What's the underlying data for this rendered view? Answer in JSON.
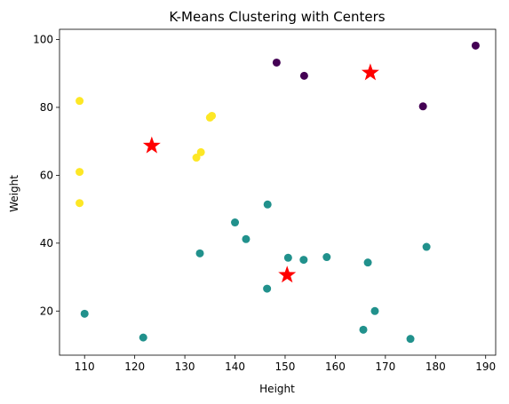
{
  "chart_data": {
    "type": "scatter",
    "title": "K-Means Clustering with Centers",
    "xlabel": "Height",
    "ylabel": "Weight",
    "xlim": [
      105,
      192
    ],
    "ylim": [
      7,
      103
    ],
    "xticks": [
      110,
      120,
      130,
      140,
      150,
      160,
      170,
      180,
      190
    ],
    "yticks": [
      20,
      40,
      60,
      80,
      100
    ],
    "grid": false,
    "legend": "none",
    "colors": {
      "cluster_0": "#440154",
      "cluster_1": "#21918c",
      "cluster_2": "#fde725",
      "center": "#ff0000",
      "axes": "#000000"
    },
    "series": [
      {
        "cluster": 0,
        "color": "#440154",
        "points": [
          [
            148.3,
            93.2
          ],
          [
            153.8,
            89.3
          ],
          [
            177.5,
            80.3
          ],
          [
            188,
            98.2
          ]
        ]
      },
      {
        "cluster": 1,
        "color": "#21918c",
        "points": [
          [
            110,
            19.2
          ],
          [
            121.7,
            12.2
          ],
          [
            133,
            37
          ],
          [
            140,
            46.1
          ],
          [
            142.2,
            41.2
          ],
          [
            146.5,
            51.4
          ],
          [
            146.4,
            26.6
          ],
          [
            150.6,
            35.7
          ],
          [
            153.7,
            35.1
          ],
          [
            158.3,
            35.9
          ],
          [
            165.6,
            14.5
          ],
          [
            166.5,
            34.3
          ],
          [
            167.9,
            20
          ],
          [
            175,
            11.8
          ],
          [
            178.2,
            38.9
          ]
        ]
      },
      {
        "cluster": 2,
        "color": "#fde725",
        "points": [
          [
            109,
            81.9
          ],
          [
            109,
            61
          ],
          [
            109,
            51.8
          ],
          [
            132.3,
            65.2
          ],
          [
            133.2,
            66.8
          ],
          [
            135,
            77
          ],
          [
            135.4,
            77.5
          ]
        ]
      }
    ],
    "centers": [
      [
        167,
        90.2
      ],
      [
        123.4,
        68.7
      ],
      [
        150.4,
        30.6
      ]
    ]
  }
}
